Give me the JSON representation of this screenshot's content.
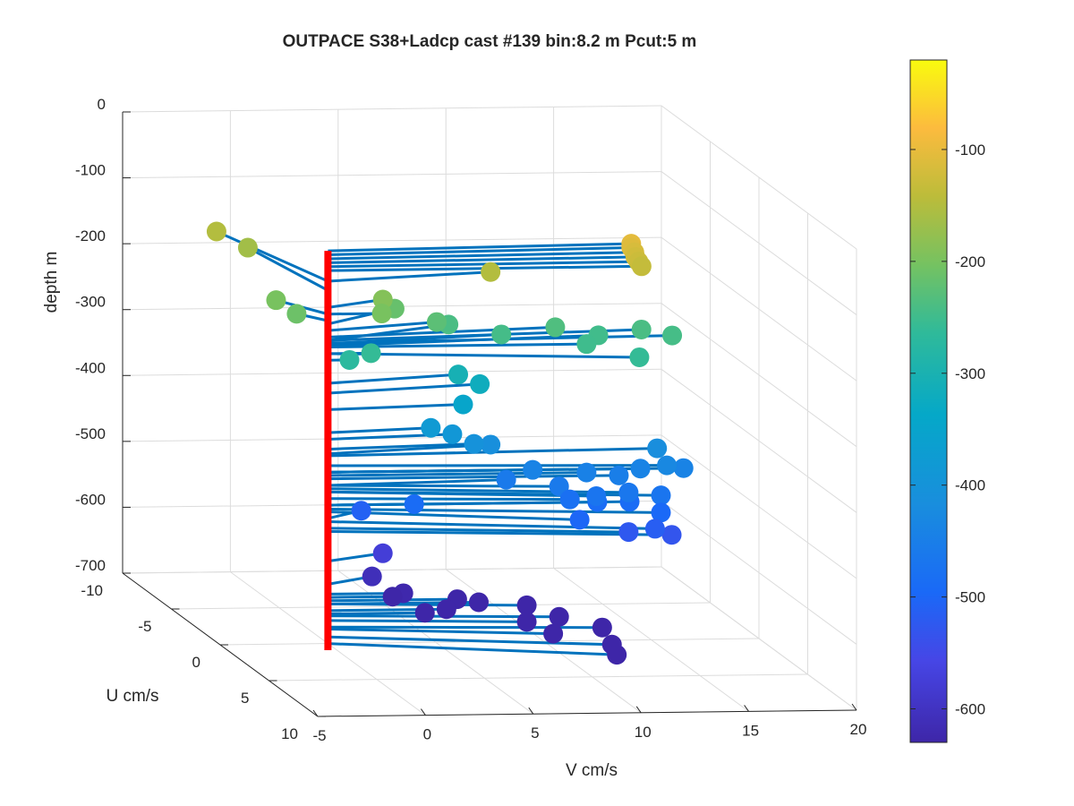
{
  "chart_data": {
    "type": "3d-stem-scatter",
    "title": "OUTPACE S38+Ladcp cast #139 bin:8.2 m  Pcut:5 m",
    "xlabel": "V cm/s",
    "ylabel": "U cm/s",
    "zlabel": "depth m",
    "xlim": [
      -5,
      20
    ],
    "ylim": [
      -10,
      10
    ],
    "zlim": [
      -700,
      0
    ],
    "x_ticks": [
      "-5",
      "0",
      "5",
      "10",
      "15",
      "20"
    ],
    "y_ticks": [
      "-10",
      "-5",
      "0",
      "5",
      "10"
    ],
    "z_ticks": [
      "0",
      "-100",
      "-200",
      "-300",
      "-400",
      "-500",
      "-600",
      "-700"
    ],
    "grid": true,
    "colormap": "parula",
    "colorbar": {
      "range": [
        -630,
        -20
      ],
      "ticks": [
        "-100",
        "-200",
        "-300",
        "-400",
        "-500",
        "-600"
      ],
      "tick_values": [
        -100,
        -200,
        -300,
        -400,
        -500,
        -600
      ]
    },
    "reference_line": {
      "color": "#ff0000",
      "v": 0,
      "u": 0,
      "depth_range": [
        -104,
        -710
      ]
    },
    "stem_color": "#0072bd",
    "points": [
      {
        "v": 14.3,
        "u": -0.5,
        "depth": -104
      },
      {
        "v": 14.3,
        "u": -0.5,
        "depth": -110
      },
      {
        "v": 14.4,
        "u": -0.4,
        "depth": -116
      },
      {
        "v": 14.4,
        "u": -0.3,
        "depth": -122
      },
      {
        "v": 14.5,
        "u": -0.2,
        "depth": -128
      },
      {
        "v": 14.6,
        "u": -0.1,
        "depth": -134
      },
      {
        "v": 8.0,
        "u": -1.0,
        "depth": -150
      },
      {
        "v": -2.0,
        "u": -7.0,
        "depth": -150
      },
      {
        "v": -1.0,
        "u": -6.0,
        "depth": -164
      },
      {
        "v": 2.5,
        "u": 0.0,
        "depth": -200
      },
      {
        "v": 3.0,
        "u": -1.0,
        "depth": -190
      },
      {
        "v": -1.5,
        "u": -2.0,
        "depth": -200
      },
      {
        "v": -1.0,
        "u": -1.0,
        "depth": -210
      },
      {
        "v": 4.0,
        "u": -2.0,
        "depth": -215
      },
      {
        "v": 5.5,
        "u": -1.0,
        "depth": -225
      },
      {
        "v": 6.5,
        "u": -2.0,
        "depth": -240
      },
      {
        "v": 8.5,
        "u": -1.0,
        "depth": -245
      },
      {
        "v": 11.0,
        "u": -1.0,
        "depth": -235
      },
      {
        "v": 12.0,
        "u": 0.0,
        "depth": -250
      },
      {
        "v": 13.0,
        "u": -1.0,
        "depth": -248
      },
      {
        "v": 15.0,
        "u": -1.0,
        "depth": -240
      },
      {
        "v": 16.2,
        "u": -0.5,
        "depth": -244
      },
      {
        "v": 14.0,
        "u": 1.0,
        "depth": -260
      },
      {
        "v": 2.0,
        "u": 0.0,
        "depth": -260
      },
      {
        "v": 1.0,
        "u": 0.0,
        "depth": -270
      },
      {
        "v": 6.5,
        "u": -1.0,
        "depth": -305
      },
      {
        "v": 7.5,
        "u": -1.0,
        "depth": -320
      },
      {
        "v": 6.5,
        "u": -0.5,
        "depth": -345
      },
      {
        "v": 5.0,
        "u": -0.5,
        "depth": -380
      },
      {
        "v": 6.0,
        "u": -0.5,
        "depth": -390
      },
      {
        "v": 7.0,
        "u": -0.5,
        "depth": -405
      },
      {
        "v": 8.0,
        "u": -1.0,
        "depth": -412
      },
      {
        "v": 9.5,
        "u": 0.0,
        "depth": -440
      },
      {
        "v": 15.5,
        "u": -0.5,
        "depth": -415
      },
      {
        "v": 15.5,
        "u": 0.5,
        "depth": -430
      },
      {
        "v": 16.5,
        "u": 0.0,
        "depth": -440
      },
      {
        "v": 12.0,
        "u": 0.0,
        "depth": -445
      },
      {
        "v": 13.5,
        "u": 0.0,
        "depth": -450
      },
      {
        "v": 14.5,
        "u": 0.0,
        "depth": -440
      },
      {
        "v": 10.5,
        "u": 0.5,
        "depth": -460
      },
      {
        "v": 12.0,
        "u": 1.0,
        "depth": -470
      },
      {
        "v": 13.5,
        "u": 1.0,
        "depth": -465
      },
      {
        "v": 15.0,
        "u": 1.0,
        "depth": -470
      },
      {
        "v": 8.5,
        "u": -0.5,
        "depth": -460
      },
      {
        "v": 11.0,
        "u": 0.5,
        "depth": -480
      },
      {
        "v": 12.5,
        "u": 0.0,
        "depth": -490
      },
      {
        "v": 14.0,
        "u": 0.0,
        "depth": -490
      },
      {
        "v": 15.0,
        "u": 1.0,
        "depth": -496
      },
      {
        "v": 11.0,
        "u": 1.5,
        "depth": -500
      },
      {
        "v": 13.5,
        "u": 1.0,
        "depth": -525
      },
      {
        "v": 14.5,
        "u": 1.5,
        "depth": -515
      },
      {
        "v": 15.5,
        "u": 1.0,
        "depth": -530
      },
      {
        "v": 4.0,
        "u": 0.0,
        "depth": -490
      },
      {
        "v": 2.0,
        "u": -1.0,
        "depth": -510
      },
      {
        "v": 3.0,
        "u": -1.0,
        "depth": -575
      },
      {
        "v": 2.5,
        "u": -1.0,
        "depth": -610
      },
      {
        "v": 3.5,
        "u": 0.0,
        "depth": -625
      },
      {
        "v": 3.0,
        "u": 0.0,
        "depth": -630
      },
      {
        "v": 6.0,
        "u": 0.0,
        "depth": -635
      },
      {
        "v": 7.0,
        "u": 0.0,
        "depth": -640
      },
      {
        "v": 9.0,
        "u": 0.5,
        "depth": -640
      },
      {
        "v": 4.5,
        "u": 0.0,
        "depth": -655
      },
      {
        "v": 5.5,
        "u": 0.0,
        "depth": -650
      },
      {
        "v": 10.5,
        "u": 0.5,
        "depth": -658
      },
      {
        "v": 9.0,
        "u": 0.5,
        "depth": -665
      },
      {
        "v": 10.0,
        "u": 1.0,
        "depth": -678
      },
      {
        "v": 12.5,
        "u": 0.5,
        "depth": -675
      },
      {
        "v": 12.5,
        "u": 1.5,
        "depth": -690
      },
      {
        "v": 12.5,
        "u": 2.0,
        "depth": -700
      }
    ]
  }
}
